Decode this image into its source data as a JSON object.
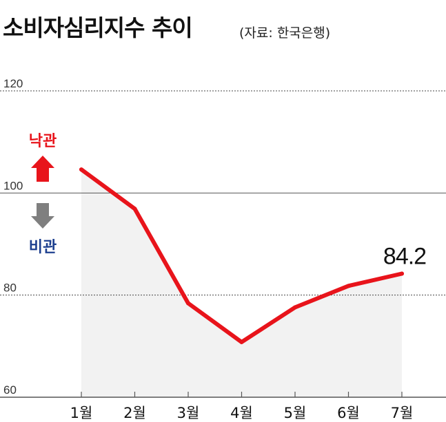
{
  "header": {
    "title": "소비자심리지수 추이",
    "source": "(자료: 한국은행)"
  },
  "legend": {
    "optimism_label": "낙관",
    "pessimism_label": "비관",
    "optimism_color": "#e8141b",
    "pessimism_color": "#1d3f8f",
    "up_arrow_icon": "up-arrow-icon",
    "down_arrow_icon": "down-arrow-icon"
  },
  "chart_data": {
    "type": "area",
    "title": "소비자심리지수 추이",
    "categories": [
      "1월",
      "2월",
      "3월",
      "4월",
      "5월",
      "6월",
      "7월"
    ],
    "series": [
      {
        "values": [
          104.6,
          96.9,
          78.4,
          70.8,
          77.6,
          81.8,
          84.2
        ]
      }
    ],
    "ylim": [
      60,
      120
    ],
    "yticks": [
      {
        "value": 120,
        "label": "120"
      },
      {
        "value": 100,
        "label": "100"
      },
      {
        "value": 80,
        "label": "80"
      },
      {
        "value": 60,
        "label": "60"
      }
    ],
    "baseline": 100,
    "last_value_label": "84.2",
    "line_color": "#e8141b",
    "fill_color": "#f2f2f2",
    "grid": "dotted"
  }
}
